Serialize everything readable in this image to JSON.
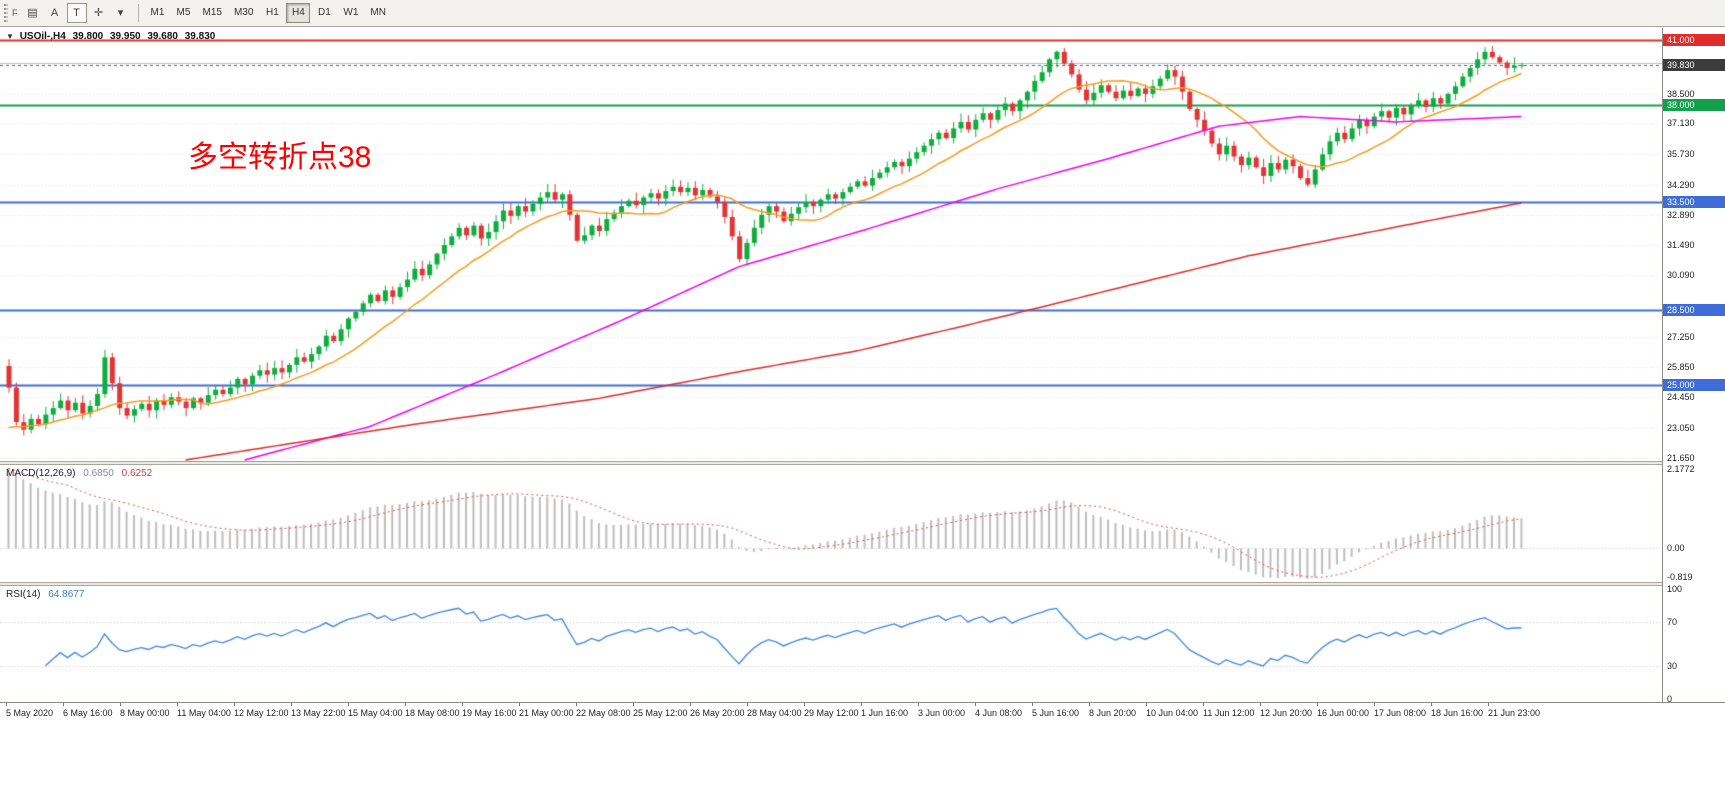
{
  "toolbar": {
    "window_tab": "F",
    "icons": [
      {
        "name": "chart-grid-icon",
        "glyph": "▤"
      },
      {
        "name": "annotation-a-icon",
        "glyph": "A"
      },
      {
        "name": "text-tool-icon",
        "glyph": "T",
        "boxed": true
      },
      {
        "name": "crosshair-icon",
        "glyph": "✛"
      },
      {
        "name": "dropdown-caret-icon",
        "glyph": "▾"
      }
    ],
    "timeframes": [
      {
        "label": "M1",
        "active": false
      },
      {
        "label": "M5",
        "active": false
      },
      {
        "label": "M15",
        "active": false
      },
      {
        "label": "M30",
        "active": false
      },
      {
        "label": "H1",
        "active": false
      },
      {
        "label": "H4",
        "active": true
      },
      {
        "label": "D1",
        "active": false
      },
      {
        "label": "W1",
        "active": false
      },
      {
        "label": "MN",
        "active": false
      }
    ]
  },
  "chart_header": {
    "collapse_glyph": "▼",
    "symbol_period": "USOil-,H4",
    "open": "39.800",
    "high": "39.950",
    "low": "39.680",
    "close": "39.830"
  },
  "annotation": {
    "text": "多空转折点38",
    "color": "#FF0000"
  },
  "colors": {
    "bull": "#0DAE3E",
    "bear": "#E23434",
    "grid": "#E4E4E4",
    "macd_bar": "#BDBDBD",
    "macd_signal": "#E05050",
    "rsi_line": "#3E86E0",
    "rsi_level": "#C9C9C9"
  },
  "chart_data": {
    "type": "candlestick",
    "symbol": "USOil-",
    "period": "H4",
    "price_range": [
      21.5,
      41.55
    ],
    "first_open": 25.9,
    "closes": [
      24.9,
      23.3,
      22.95,
      23.45,
      23.2,
      23.65,
      23.95,
      24.3,
      23.85,
      24.2,
      23.7,
      24.05,
      24.6,
      26.3,
      25.1,
      23.95,
      23.6,
      23.9,
      24.15,
      23.85,
      24.3,
      24.1,
      24.45,
      24.25,
      23.95,
      24.4,
      24.2,
      24.55,
      24.8,
      24.6,
      24.9,
      25.3,
      25.05,
      25.45,
      25.7,
      25.5,
      25.8,
      25.6,
      25.95,
      26.3,
      26.1,
      26.45,
      26.8,
      27.3,
      27.05,
      27.6,
      28.1,
      28.4,
      28.8,
      29.2,
      28.9,
      29.4,
      29.1,
      29.55,
      29.9,
      30.4,
      30.1,
      30.6,
      31.1,
      31.5,
      31.9,
      32.3,
      31.95,
      32.4,
      31.8,
      32.1,
      32.6,
      33.1,
      32.85,
      33.3,
      33.05,
      33.4,
      33.7,
      33.95,
      33.6,
      33.85,
      32.9,
      31.7,
      31.95,
      32.4,
      32.15,
      32.7,
      33.0,
      33.3,
      33.55,
      33.35,
      33.7,
      33.9,
      33.65,
      34.0,
      34.2,
      33.95,
      34.15,
      33.8,
      34.05,
      33.75,
      33.5,
      32.8,
      31.9,
      30.85,
      31.6,
      32.3,
      32.9,
      33.3,
      33.05,
      32.6,
      32.95,
      33.25,
      33.5,
      33.3,
      33.6,
      33.85,
      33.65,
      33.95,
      34.2,
      34.45,
      34.25,
      34.6,
      34.85,
      35.1,
      35.35,
      35.15,
      35.5,
      35.8,
      36.1,
      36.4,
      36.7,
      36.45,
      36.9,
      37.2,
      36.85,
      37.3,
      37.6,
      37.3,
      37.75,
      38.05,
      37.7,
      38.2,
      38.6,
      39.1,
      39.5,
      40.1,
      40.45,
      39.9,
      39.4,
      38.7,
      38.2,
      38.55,
      38.9,
      38.6,
      38.3,
      38.65,
      38.4,
      38.75,
      38.5,
      38.85,
      39.2,
      39.6,
      39.3,
      38.6,
      37.8,
      37.3,
      36.8,
      36.2,
      35.7,
      36.1,
      35.6,
      35.2,
      35.55,
      35.1,
      34.7,
      35.3,
      35.0,
      35.45,
      35.15,
      34.6,
      34.3,
      35.0,
      35.7,
      36.3,
      36.7,
      36.4,
      36.9,
      37.3,
      37.0,
      37.45,
      37.7,
      37.4,
      37.85,
      37.55,
      37.95,
      38.2,
      37.9,
      38.3,
      38.05,
      38.5,
      38.85,
      39.3,
      39.7,
      40.1,
      40.45,
      40.2,
      39.95,
      39.7,
      39.8,
      39.83
    ],
    "current_price": 39.83,
    "moving_averages": [
      {
        "name": "ma-fast",
        "color": "#F59B1E",
        "style": "sma",
        "period": 13,
        "seed_offset": 2.0
      },
      {
        "name": "ma-mid",
        "color": "#F000F0",
        "style": "waypoints",
        "points": [
          [
            32,
            21.55
          ],
          [
            49,
            23.1
          ],
          [
            66,
            25.5
          ],
          [
            83,
            28.0
          ],
          [
            99,
            30.5
          ],
          [
            116,
            32.2
          ],
          [
            134,
            34.1
          ],
          [
            148,
            35.4
          ],
          [
            164,
            37.0
          ],
          [
            175,
            37.45
          ],
          [
            188,
            37.2
          ],
          [
            205,
            37.45
          ]
        ]
      },
      {
        "name": "ma-slow",
        "color": "#DD2A2A",
        "style": "waypoints",
        "points": [
          [
            24,
            21.55
          ],
          [
            55,
            23.2
          ],
          [
            80,
            24.4
          ],
          [
            100,
            25.7
          ],
          [
            115,
            26.6
          ],
          [
            130,
            27.8
          ],
          [
            142,
            28.8
          ],
          [
            155,
            29.9
          ],
          [
            168,
            31.0
          ],
          [
            180,
            31.8
          ],
          [
            192,
            32.6
          ],
          [
            205,
            33.45
          ]
        ]
      }
    ],
    "horizontal_lines": [
      {
        "price": 41.0,
        "color": "#E22C2C",
        "width": 2,
        "dash": null
      },
      {
        "price": 39.95,
        "color": "#A9C0D6",
        "width": 1,
        "dash": null
      },
      {
        "price": 39.83,
        "color": "#606060",
        "width": 1,
        "dash": [
          3,
          3
        ]
      },
      {
        "price": 38.0,
        "color": "#12A04C",
        "width": 2,
        "dash": null
      },
      {
        "price": 33.5,
        "color": "#3E6CD8",
        "width": 2,
        "dash": null
      },
      {
        "price": 28.5,
        "color": "#3E6CD8",
        "width": 2,
        "dash": null
      },
      {
        "price": 25.0,
        "color": "#3E6CD8",
        "width": 2,
        "dash": null
      }
    ]
  },
  "price_axis": {
    "ticks": [
      {
        "label": "38.500",
        "v": 38.5
      },
      {
        "label": "37.130",
        "v": 37.13
      },
      {
        "label": "35.730",
        "v": 35.73
      },
      {
        "label": "34.290",
        "v": 34.29
      },
      {
        "label": "32.890",
        "v": 32.89
      },
      {
        "label": "31.490",
        "v": 31.49
      },
      {
        "label": "30.090",
        "v": 30.09
      },
      {
        "label": "27.250",
        "v": 27.25
      },
      {
        "label": "25.850",
        "v": 25.85
      },
      {
        "label": "24.450",
        "v": 24.45
      },
      {
        "label": "23.050",
        "v": 23.05
      },
      {
        "label": "21.650",
        "v": 21.65
      }
    ],
    "badges": [
      {
        "label": "41.000",
        "v": 41.0,
        "bg": "#E22C2C"
      },
      {
        "label": "38.000",
        "v": 38.0,
        "bg": "#12A04C"
      },
      {
        "label": "33.500",
        "v": 33.5,
        "bg": "#3E6CD8"
      },
      {
        "label": "28.500",
        "v": 28.5,
        "bg": "#3E6CD8"
      },
      {
        "label": "25.000",
        "v": 25.0,
        "bg": "#3E6CD8"
      }
    ],
    "current": {
      "label": "39.830",
      "v": 39.83,
      "bg": "#3C3C3C"
    }
  },
  "macd_panel": {
    "title": "MACD(12,26,9)",
    "value_main": "0.6850",
    "value_signal": "0.6252",
    "fast": 12,
    "slow": 26,
    "signal": 9,
    "range": [
      -0.95,
      2.3
    ],
    "scale_labels": [
      {
        "label": "2.1772",
        "v": 2.1772
      },
      {
        "label": "0.00",
        "v": 0
      },
      {
        "label": "-0.819",
        "v": -0.819
      }
    ]
  },
  "rsi_panel": {
    "title": "RSI(14)",
    "value": "64.8677",
    "period": 14,
    "levels": [
      70,
      30
    ],
    "range": [
      0,
      100
    ],
    "scale_labels": [
      {
        "label": "100",
        "v": 100
      },
      {
        "label": "70",
        "v": 70
      },
      {
        "label": "30",
        "v": 30
      },
      {
        "label": "0",
        "v": 0
      }
    ]
  },
  "time_axis": {
    "labels": [
      "5 May 2020",
      "6 May 16:00",
      "8 May 00:00",
      "11 May 04:00",
      "12 May 12:00",
      "13 May 22:00",
      "15 May 04:00",
      "18 May 08:00",
      "19 May 16:00",
      "21 May 00:00",
      "22 May 08:00",
      "25 May 12:00",
      "26 May 20:00",
      "28 May 04:00",
      "29 May 12:00",
      "1 Jun 16:00",
      "3 Jun 00:00",
      "4 Jun 08:00",
      "5 Jun 16:00",
      "8 Jun 20:00",
      "10 Jun 04:00",
      "11 Jun 12:00",
      "12 Jun 20:00",
      "16 Jun 00:00",
      "17 Jun 08:00",
      "18 Jun 16:00",
      "21 Jun 23:00"
    ]
  }
}
